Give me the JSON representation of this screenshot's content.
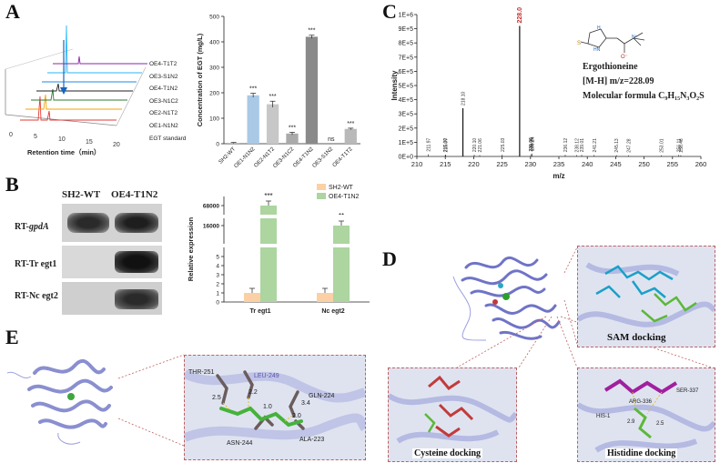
{
  "letters": {
    "a": "A",
    "b": "B",
    "c": "C",
    "d": "D",
    "e": "E"
  },
  "panelA": {
    "trace_labels": [
      "OE4-T1T2",
      "OE3-S1N2",
      "OE4-T1N2",
      "OE3-N1C2",
      "OE2-N1T2",
      "OE1-N1N2",
      "EGT standard"
    ],
    "x_ticks": [
      "0",
      "5",
      "10",
      "15",
      "20"
    ],
    "xlabel": "Retention time（min）"
  },
  "chartA": {
    "type": "bar",
    "ylabel": "Concentration of EGT (mg/L)",
    "categories": [
      "SH2-WT",
      "OE1-N1N2",
      "OE2-N1T2",
      "OE3-N1C2",
      "OE4-T1N2",
      "OE3-S1N2",
      "OE4-T1T2"
    ],
    "values": [
      3,
      190,
      155,
      40,
      420,
      0,
      58
    ],
    "errors": [
      2,
      8,
      12,
      5,
      6,
      0,
      3
    ],
    "sig": [
      "",
      "***",
      "***",
      "***",
      "***",
      "ns",
      "***"
    ],
    "colors": [
      "#b0b0b0",
      "#a9c9e6",
      "#c7c7c7",
      "#aaaaaa",
      "#8a8a8a",
      "#b0b0b0",
      "#b9b9b9"
    ],
    "y_ticks": [
      "0",
      "100",
      "200",
      "300",
      "400",
      "500"
    ],
    "ylim": [
      0,
      500
    ]
  },
  "gel": {
    "col_labels": [
      "SH2-WT",
      "OE4-T1N2"
    ],
    "row_prefixes": [
      "RT-",
      "RT-Tr egt1",
      "RT-Nc egt2"
    ],
    "row_italics": [
      "gpdA"
    ]
  },
  "chartB": {
    "type": "bar",
    "ylabel": "Relative expression",
    "categories": [
      "Tr egt1",
      "Nc egt2"
    ],
    "series": [
      {
        "name": "SH2-WT",
        "values": [
          1,
          1
        ],
        "color": "#fbd0a4"
      },
      {
        "name": "OE4-T1N2",
        "values": [
          68000,
          16000
        ],
        "color": "#acd5a0"
      }
    ],
    "sig": [
      "***",
      "**"
    ],
    "y_ticks_lower": [
      "0",
      "1",
      "2",
      "3",
      "4",
      "5"
    ],
    "y_ticks_upper": [
      "16000",
      "68000"
    ]
  },
  "chartC": {
    "type": "bar",
    "ylabel": "Intensity",
    "xlabel": "m/z",
    "y_ticks": [
      "0E+0",
      "1E+5",
      "2E+5",
      "3E+5",
      "4E+5",
      "5E+5",
      "6E+5",
      "7E+5",
      "8E+5",
      "9E+5",
      "1E+6"
    ],
    "x_ticks": [
      "210",
      "215",
      "220",
      "225",
      "230",
      "235",
      "240",
      "245",
      "250",
      "255",
      "260"
    ],
    "xlim": [
      210,
      260
    ],
    "ylim": [
      0,
      1000000
    ],
    "peaks": [
      {
        "mz": 211.97,
        "i": 15000,
        "label": "211.97"
      },
      {
        "mz": 215.0,
        "i": 12000,
        "label": "215.00"
      },
      {
        "mz": 215.07,
        "i": 10000,
        "label": "215.07"
      },
      {
        "mz": 218.1,
        "i": 340000,
        "label": "218.10"
      },
      {
        "mz": 220.1,
        "i": 12000,
        "label": "220.10"
      },
      {
        "mz": 221.06,
        "i": 10000,
        "label": "221.06"
      },
      {
        "mz": 225.03,
        "i": 13000,
        "label": "225.03"
      },
      {
        "mz": 228.09,
        "i": 920000,
        "label": "228.09"
      },
      {
        "mz": 230.24,
        "i": 20000,
        "label": "230.24"
      },
      {
        "mz": 230.06,
        "i": 16000,
        "label": "230.06"
      },
      {
        "mz": 236.12,
        "i": 12000,
        "label": "236.12"
      },
      {
        "mz": 238.12,
        "i": 10000,
        "label": "238.12"
      },
      {
        "mz": 239.01,
        "i": 11000,
        "label": "239.01"
      },
      {
        "mz": 241.21,
        "i": 10000,
        "label": "241.21"
      },
      {
        "mz": 245.13,
        "i": 9000,
        "label": "245.13"
      },
      {
        "mz": 247.28,
        "i": 8000,
        "label": "247.28"
      },
      {
        "mz": 253.01,
        "i": 8000,
        "label": "253.01"
      },
      {
        "mz": 256.11,
        "i": 11000,
        "label": "256.11"
      },
      {
        "mz": 256.46,
        "i": 9000,
        "label": "256.46"
      }
    ],
    "compound": "Ergothioneine",
    "ion": "[M-H]  m/z=228.09",
    "formula": "Molecular formula  C₉H₁₅N₃O₂S"
  },
  "panelD": {
    "sam": "SAM docking",
    "cys": "Cysteine docking",
    "his": "Histidine docking",
    "his_labels": [
      "ARG-336",
      "SER-337",
      "HIS-1",
      "2.9",
      "2.5"
    ]
  },
  "panelE": {
    "residues": [
      "THR-251",
      "LEU-249",
      "GLN-224",
      "ASN-244",
      "ALA-223"
    ],
    "distances": [
      "2.5",
      "2.2",
      "1.0",
      "3.4",
      "2.0"
    ]
  }
}
